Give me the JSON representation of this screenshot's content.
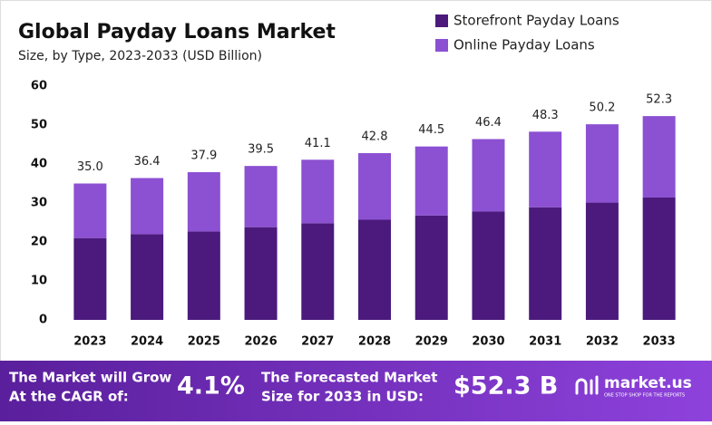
{
  "chart_data": {
    "type": "stacked-bar",
    "title": "Global Payday Loans Market",
    "subtitle": "Size, by Type, 2023-2033 (USD Billion)",
    "categories": [
      "2023",
      "2024",
      "2025",
      "2026",
      "2027",
      "2028",
      "2029",
      "2030",
      "2031",
      "2032",
      "2033"
    ],
    "series": [
      {
        "name": "Storefront Payday Loans",
        "color": "#4b1a7c",
        "values": [
          21.0,
          22.0,
          22.7,
          23.8,
          24.8,
          25.7,
          26.8,
          27.8,
          28.9,
          30.1,
          31.4
        ]
      },
      {
        "name": "Online Payday Loans",
        "color": "#8c50d2",
        "values": [
          14.0,
          14.4,
          15.2,
          15.7,
          16.3,
          17.1,
          17.7,
          18.6,
          19.4,
          20.1,
          20.9
        ]
      }
    ],
    "totals": [
      35.0,
      36.4,
      37.9,
      39.5,
      41.1,
      42.8,
      44.5,
      46.4,
      48.3,
      50.2,
      52.3
    ],
    "total_labels": [
      "35.0",
      "36.4",
      "37.9",
      "39.5",
      "41.1",
      "42.8",
      "44.5",
      "46.4",
      "48.3",
      "50.2",
      "52.3"
    ],
    "ylim": [
      0,
      60
    ],
    "yticks": [
      0,
      10,
      20,
      30,
      40,
      50,
      60
    ],
    "grid": false,
    "legend": "top-right"
  },
  "footer": {
    "cagr_text_1": "The Market will Grow",
    "cagr_text_2": "At the CAGR of:",
    "cagr": "4.1%",
    "forecast_text_1": "The Forecasted Market",
    "forecast_text_2": "Size for 2033 in USD:",
    "forecast": "$52.3 B",
    "brand": "market.us",
    "tagline": "ONE STOP SHOP FOR THE REPORTS"
  }
}
